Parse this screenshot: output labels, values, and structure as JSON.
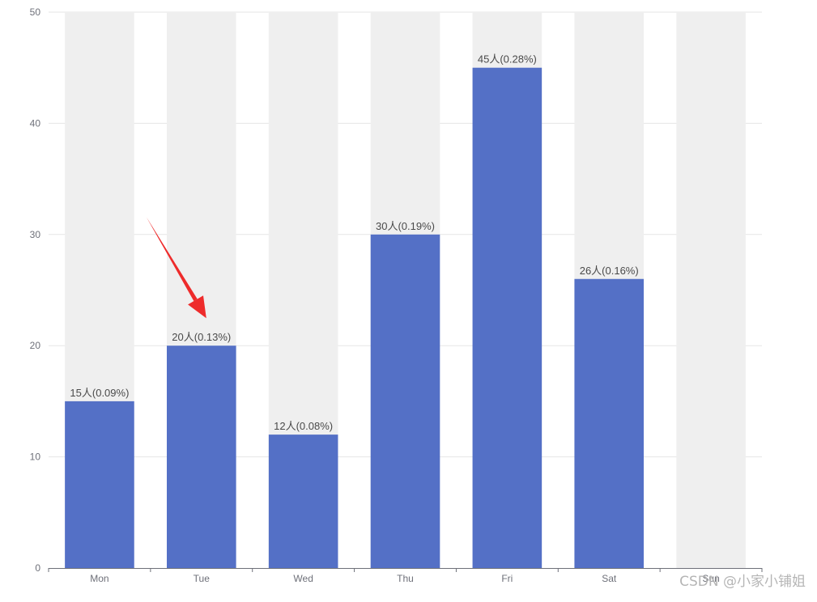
{
  "chart_data": {
    "type": "bar",
    "categories": [
      "Mon",
      "Tue",
      "Wed",
      "Thu",
      "Fri",
      "Sat",
      "Sun"
    ],
    "values": [
      15,
      20,
      12,
      30,
      45,
      26,
      null
    ],
    "data_labels": [
      "15人(0.09%)",
      "20人(0.13%)",
      "12人(0.08%)",
      "30人(0.19%)",
      "45人(0.28%)",
      "26人(0.16%)",
      ""
    ],
    "ylim": [
      0,
      50
    ],
    "yticks": [
      0,
      10,
      20,
      30,
      40,
      50
    ],
    "title": "",
    "xlabel": "",
    "ylabel": "",
    "grid": true,
    "show_background_bars": true,
    "colors": {
      "bar": "#5470c6",
      "background_bar": "#efefef",
      "grid": "#e6e6e6",
      "axis": "#6e7079",
      "annotation_arrow": "#ee2b2b"
    },
    "annotation": {
      "type": "arrow",
      "points_to_category": "Tue"
    }
  },
  "watermark": "CSDN @小家小铺姐"
}
